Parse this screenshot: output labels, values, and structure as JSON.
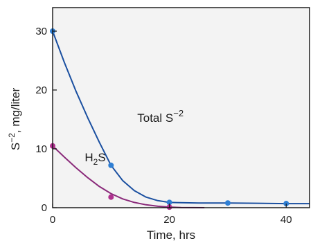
{
  "chart_data": {
    "type": "line",
    "title": "",
    "xlabel": "Time, hrs",
    "ylabel": "S",
    "ylabel_superscript": "−2",
    "ylabel_suffix": ", mg/liter",
    "xlim": [
      0,
      44
    ],
    "ylim": [
      0,
      34
    ],
    "x_ticks": [
      0,
      20,
      40
    ],
    "y_ticks": [
      0,
      10,
      20,
      30
    ],
    "grid": false,
    "legend": "none",
    "plot_background": "#f3f3f3",
    "series": [
      {
        "name": "Total S",
        "name_superscript": "−2",
        "color": "#1a4fa0",
        "marker_color": "#2f7fd4",
        "points": [
          {
            "x": 0,
            "y": 30
          },
          {
            "x": 10,
            "y": 7.2
          },
          {
            "x": 20,
            "y": 0.9
          },
          {
            "x": 30,
            "y": 0.8
          },
          {
            "x": 40,
            "y": 0.7
          }
        ],
        "curve": [
          {
            "x": 0,
            "y": 30
          },
          {
            "x": 2,
            "y": 24.7
          },
          {
            "x": 4,
            "y": 19.8
          },
          {
            "x": 6,
            "y": 15.3
          },
          {
            "x": 8,
            "y": 11.1
          },
          {
            "x": 10,
            "y": 7.2
          },
          {
            "x": 12,
            "y": 4.6
          },
          {
            "x": 14,
            "y": 2.9
          },
          {
            "x": 16,
            "y": 1.8
          },
          {
            "x": 18,
            "y": 1.2
          },
          {
            "x": 20,
            "y": 0.9
          },
          {
            "x": 25,
            "y": 0.8
          },
          {
            "x": 30,
            "y": 0.8
          },
          {
            "x": 35,
            "y": 0.75
          },
          {
            "x": 40,
            "y": 0.7
          },
          {
            "x": 44,
            "y": 0.7
          }
        ]
      },
      {
        "name": "H",
        "name_subscript": "2",
        "name_suffix": "S",
        "color": "#8a2a7a",
        "marker_color": "#b0308f",
        "points": [
          {
            "x": 0,
            "y": 10.5
          },
          {
            "x": 10,
            "y": 1.8
          },
          {
            "x": 20,
            "y": 0.1
          }
        ],
        "curve": [
          {
            "x": 0,
            "y": 10.5
          },
          {
            "x": 2,
            "y": 8.6
          },
          {
            "x": 4,
            "y": 6.8
          },
          {
            "x": 6,
            "y": 5.1
          },
          {
            "x": 8,
            "y": 3.6
          },
          {
            "x": 10,
            "y": 2.4
          },
          {
            "x": 12,
            "y": 1.5
          },
          {
            "x": 14,
            "y": 0.9
          },
          {
            "x": 16,
            "y": 0.5
          },
          {
            "x": 18,
            "y": 0.25
          },
          {
            "x": 20,
            "y": 0.1
          },
          {
            "x": 22,
            "y": 0.02
          },
          {
            "x": 26,
            "y": 0
          }
        ]
      }
    ],
    "annotations": [
      {
        "series": 0,
        "x": 14.5,
        "y": 14.6
      },
      {
        "series": 1,
        "x": 5.5,
        "y": 7.9
      }
    ]
  }
}
